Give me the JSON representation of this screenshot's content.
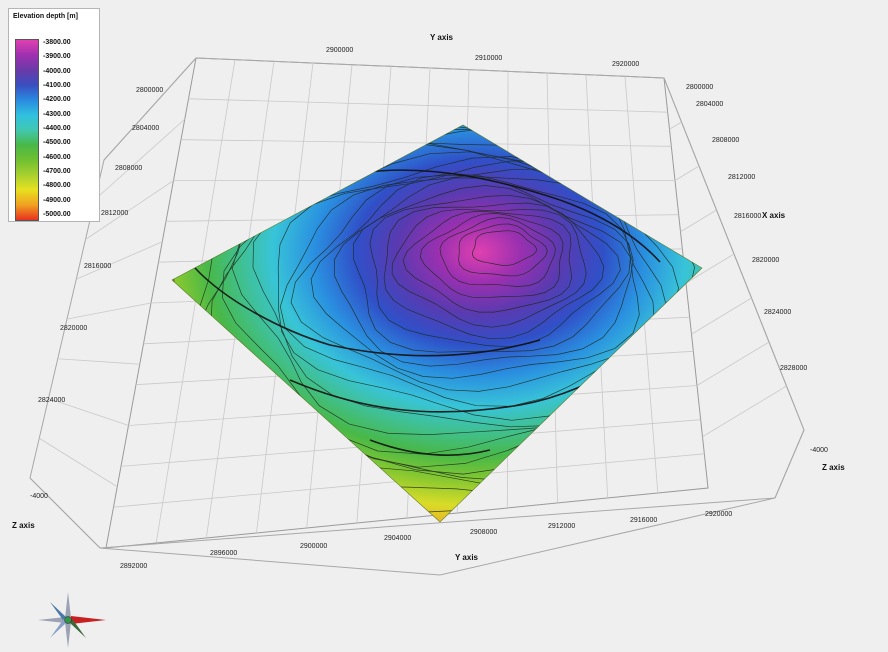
{
  "legend": {
    "title": "Elevation depth [m]",
    "values": [
      "-3800.00",
      "-3900.00",
      "-4000.00",
      "-4100.00",
      "-4200.00",
      "-4300.00",
      "-4400.00",
      "-4500.00",
      "-4600.00",
      "-4700.00",
      "-4800.00",
      "-4900.00",
      "-5000.00"
    ],
    "colors": [
      "#e040b0",
      "#a030b0",
      "#6a3aa8",
      "#3a4ec0",
      "#2a8ae0",
      "#30c0e0",
      "#40c8b0",
      "#48b848",
      "#70c030",
      "#a8d030",
      "#e8e020",
      "#f0a020",
      "#e83020"
    ]
  },
  "axes": {
    "y_axis_label_top": "Y axis",
    "y_axis_label_bottom": "Y axis",
    "x_axis_label": "X axis",
    "z_axis_label_left": "Z axis",
    "z_axis_label_right": "Z axis",
    "top_y_ticks": [
      "2900000",
      "2910000",
      "2920000"
    ],
    "left_x_ticks": [
      "2800000",
      "2804000",
      "2808000",
      "2812000",
      "2816000",
      "2820000",
      "2824000"
    ],
    "right_x_ticks": [
      "2800000",
      "2804000",
      "2808000",
      "2812000",
      "2816000",
      "2820000",
      "2824000",
      "2828000"
    ],
    "bottom_y_ticks": [
      "2892000",
      "2896000",
      "2900000",
      "2904000",
      "2908000",
      "2912000",
      "2916000",
      "2920000"
    ],
    "z_tick_left": "-4000",
    "z_tick_right": "-4000"
  },
  "compass": {
    "icon": "compass-rose-icon"
  }
}
